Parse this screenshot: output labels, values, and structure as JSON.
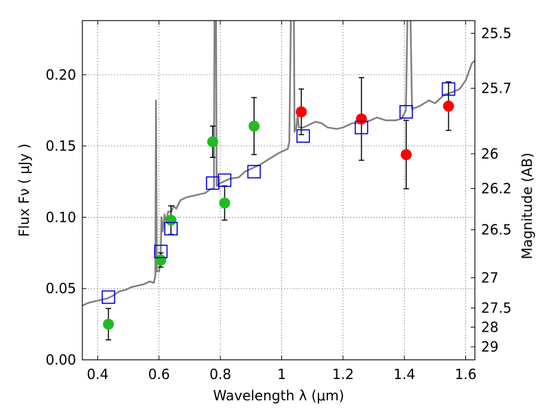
{
  "chart_data": {
    "type": "scatter",
    "xlabel": "Wavelength  λ (μm)",
    "ylabel": "Flux  Fν  ( μJy )",
    "ylabel_right": "Magnitude (AB)",
    "xlim": [
      0.35,
      1.63
    ],
    "ylim": [
      0.0,
      0.238
    ],
    "grid": true,
    "x_ticks": [
      {
        "value": 0.4,
        "label": "0.4"
      },
      {
        "value": 0.6,
        "label": "0.6"
      },
      {
        "value": 0.8,
        "label": "0.8"
      },
      {
        "value": 1.0,
        "label": "1"
      },
      {
        "value": 1.2,
        "label": "1.2"
      },
      {
        "value": 1.4,
        "label": "1.4"
      },
      {
        "value": 1.6,
        "label": "1.6"
      }
    ],
    "y_ticks": [
      {
        "value": 0.0,
        "label": "0.00"
      },
      {
        "value": 0.05,
        "label": "0.05"
      },
      {
        "value": 0.1,
        "label": "0.10"
      },
      {
        "value": 0.15,
        "label": "0.15"
      },
      {
        "value": 0.2,
        "label": "0.20"
      }
    ],
    "right_ticks": [
      {
        "label": "25.5"
      },
      {
        "label": "25.7"
      },
      {
        "label": "26"
      },
      {
        "label": "26.2"
      },
      {
        "label": "26.5"
      },
      {
        "label": "27"
      },
      {
        "label": "27.5"
      },
      {
        "label": "28"
      },
      {
        "label": "29"
      }
    ],
    "colors": {
      "observed_optical": "#22bb22",
      "observed_ir": "#ff0000",
      "model": "#0000dd",
      "spectrum": "#808080",
      "errorbar": "#000000"
    },
    "series": [
      {
        "kind": "observed_optical",
        "points": [
          {
            "x": 0.435,
            "y": 0.025,
            "err": 0.011
          },
          {
            "x": 0.606,
            "y": 0.07,
            "err": 0.005
          },
          {
            "x": 0.639,
            "y": 0.098,
            "err": 0.01
          },
          {
            "x": 0.775,
            "y": 0.153,
            "err": 0.011
          },
          {
            "x": 0.814,
            "y": 0.11,
            "err": 0.012
          },
          {
            "x": 0.91,
            "y": 0.164,
            "err": 0.02
          }
        ]
      },
      {
        "kind": "observed_ir",
        "points": [
          {
            "x": 1.064,
            "y": 0.174,
            "err": 0.016
          },
          {
            "x": 1.26,
            "y": 0.169,
            "err": 0.029
          },
          {
            "x": 1.406,
            "y": 0.144,
            "err": 0.024
          },
          {
            "x": 1.544,
            "y": 0.178,
            "err": 0.017
          }
        ]
      },
      {
        "kind": "model",
        "points": [
          {
            "x": 0.435,
            "y": 0.044
          },
          {
            "x": 0.606,
            "y": 0.076
          },
          {
            "x": 0.639,
            "y": 0.092
          },
          {
            "x": 0.775,
            "y": 0.124
          },
          {
            "x": 0.814,
            "y": 0.126
          },
          {
            "x": 0.91,
            "y": 0.132
          },
          {
            "x": 1.07,
            "y": 0.157
          },
          {
            "x": 1.26,
            "y": 0.163
          },
          {
            "x": 1.406,
            "y": 0.174
          },
          {
            "x": 1.544,
            "y": 0.19
          }
        ]
      }
    ],
    "spectrum": [
      [
        0.35,
        0.038
      ],
      [
        0.37,
        0.04
      ],
      [
        0.39,
        0.041
      ],
      [
        0.41,
        0.042
      ],
      [
        0.43,
        0.043
      ],
      [
        0.45,
        0.045
      ],
      [
        0.47,
        0.048
      ],
      [
        0.49,
        0.049
      ],
      [
        0.51,
        0.051
      ],
      [
        0.53,
        0.052
      ],
      [
        0.55,
        0.053
      ],
      [
        0.57,
        0.055
      ],
      [
        0.583,
        0.054
      ],
      [
        0.588,
        0.059
      ],
      [
        0.59,
        0.182
      ],
      [
        0.593,
        0.062
      ],
      [
        0.6,
        0.062
      ],
      [
        0.605,
        0.07
      ],
      [
        0.608,
        0.1
      ],
      [
        0.612,
        0.09
      ],
      [
        0.618,
        0.102
      ],
      [
        0.623,
        0.097
      ],
      [
        0.63,
        0.104
      ],
      [
        0.64,
        0.104
      ],
      [
        0.648,
        0.108
      ],
      [
        0.656,
        0.106
      ],
      [
        0.67,
        0.112
      ],
      [
        0.69,
        0.114
      ],
      [
        0.71,
        0.115
      ],
      [
        0.73,
        0.116
      ],
      [
        0.75,
        0.117
      ],
      [
        0.77,
        0.12
      ],
      [
        0.779,
        0.12
      ],
      [
        0.781,
        0.24
      ],
      [
        0.786,
        0.24
      ],
      [
        0.788,
        0.122
      ],
      [
        0.8,
        0.124
      ],
      [
        0.83,
        0.127
      ],
      [
        0.86,
        0.128
      ],
      [
        0.88,
        0.132
      ],
      [
        0.9,
        0.134
      ],
      [
        0.93,
        0.137
      ],
      [
        0.96,
        0.141
      ],
      [
        0.99,
        0.145
      ],
      [
        1.02,
        0.148
      ],
      [
        1.025,
        0.153
      ],
      [
        1.03,
        0.24
      ],
      [
        1.04,
        0.24
      ],
      [
        1.042,
        0.16
      ],
      [
        1.048,
        0.163
      ],
      [
        1.052,
        0.172
      ],
      [
        1.056,
        0.163
      ],
      [
        1.07,
        0.163
      ],
      [
        1.09,
        0.165
      ],
      [
        1.11,
        0.167
      ],
      [
        1.13,
        0.166
      ],
      [
        1.15,
        0.163
      ],
      [
        1.18,
        0.162
      ],
      [
        1.2,
        0.163
      ],
      [
        1.23,
        0.166
      ],
      [
        1.26,
        0.166
      ],
      [
        1.29,
        0.168
      ],
      [
        1.31,
        0.17
      ],
      [
        1.34,
        0.168
      ],
      [
        1.37,
        0.168
      ],
      [
        1.39,
        0.169
      ],
      [
        1.405,
        0.175
      ],
      [
        1.41,
        0.24
      ],
      [
        1.42,
        0.24
      ],
      [
        1.425,
        0.176
      ],
      [
        1.45,
        0.178
      ],
      [
        1.48,
        0.182
      ],
      [
        1.5,
        0.18
      ],
      [
        1.53,
        0.186
      ],
      [
        1.56,
        0.188
      ],
      [
        1.58,
        0.19
      ],
      [
        1.6,
        0.196
      ],
      [
        1.62,
        0.208
      ],
      [
        1.63,
        0.21
      ]
    ]
  }
}
